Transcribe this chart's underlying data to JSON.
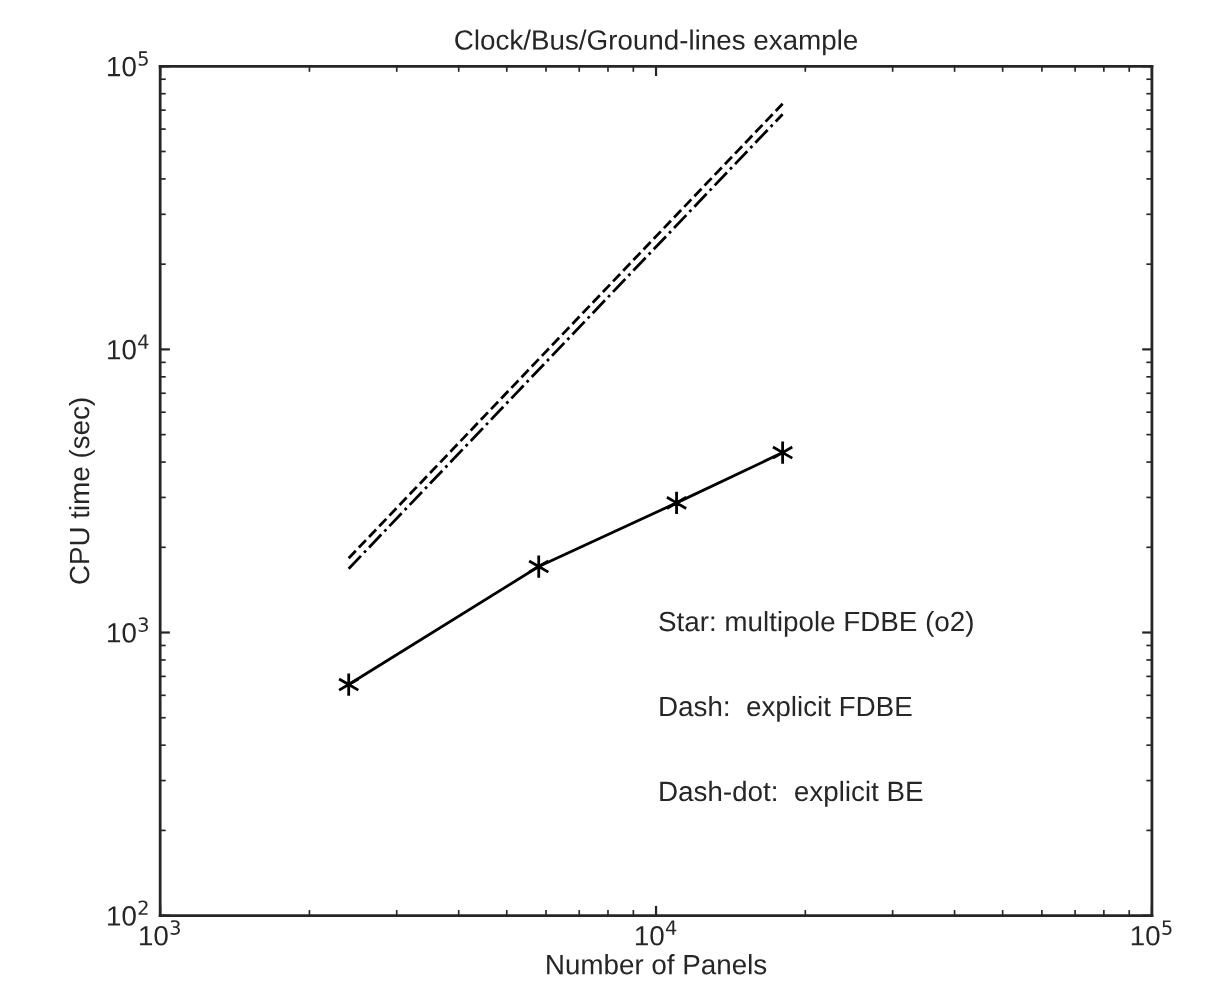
{
  "chart_data": {
    "type": "line",
    "title": "Clock/Bus/Ground-lines example",
    "xlabel": "Number of Panels",
    "ylabel": "CPU time (sec)",
    "log": "xy",
    "grid": false,
    "legend": false,
    "xlim": [
      1000,
      100000
    ],
    "xticks": [
      {
        "value": 1000,
        "label": "10$^{3}$"
      },
      {
        "value": 10000,
        "label": "10$^{4}$"
      },
      {
        "value": 100000,
        "label": "10$^{5}$"
      }
    ],
    "ylim": [
      100,
      100000
    ],
    "yticks": [
      {
        "value": 100,
        "label": "10$^{2}$"
      },
      {
        "value": 1000,
        "label": "10$^{3}$"
      },
      {
        "value": 10000,
        "label": "10$^{4}$"
      },
      {
        "value": 100000,
        "label": "10$^{5}$"
      }
    ],
    "series": [
      {
        "color": "#000000",
        "marker": "cross",
        "line_style": "solid",
        "x": [
          2400,
          5800,
          11000,
          18000
        ],
        "values": [
          655,
          1710,
          2870,
          4320
        ]
      },
      {
        "color": "#000000",
        "marker": "none",
        "line_style": "dashed",
        "x": [
          2400,
          18000
        ],
        "values": [
          1830,
          73700
        ]
      },
      {
        "color": "#000000",
        "marker": "none",
        "line_style": "dashdot",
        "x": [
          2400,
          18000
        ],
        "values": [
          1680,
          67700
        ]
      }
    ],
    "annotations": [
      "Star: multipole FDBE (o2)",
      "Dash:  explicit FDBE",
      "Dash-dot:  explicit BE"
    ]
  }
}
